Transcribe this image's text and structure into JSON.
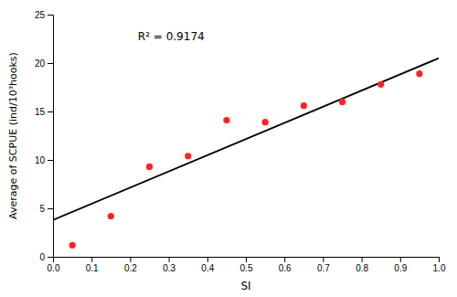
{
  "chart_data": {
    "type": "scatter",
    "xlabel": "SI",
    "ylabel": "Average of SCPUE (ind/10³hooks)",
    "series": [
      {
        "type": "scatter",
        "color": "#FF2222",
        "x": [
          0.05,
          0.15,
          0.25,
          0.35,
          0.45,
          0.55,
          0.65,
          0.75,
          0.85,
          0.95
        ],
        "values": [
          1.2,
          4.2,
          9.3,
          10.4,
          14.1,
          13.9,
          15.6,
          16.0,
          17.8,
          18.9
        ]
      },
      {
        "type": "line",
        "color": "#000000",
        "x": [
          0.0,
          1.0
        ],
        "values": [
          3.8,
          20.5
        ]
      }
    ],
    "annotations": [
      {
        "text": "R² = 0.9174",
        "x": 0.22,
        "y": 23.2
      }
    ],
    "xlim": [
      0,
      1
    ],
    "ylim": [
      0,
      25
    ],
    "xticks": [
      {
        "value": 0,
        "label": "0.0"
      },
      0.1,
      0.2,
      0.3,
      0.4,
      0.5,
      0.6,
      0.7,
      0.8,
      0.9,
      {
        "value": 1.0,
        "label": "1.0"
      }
    ],
    "yticks": [
      0,
      5,
      10,
      15,
      20,
      25
    ],
    "grid": false
  }
}
